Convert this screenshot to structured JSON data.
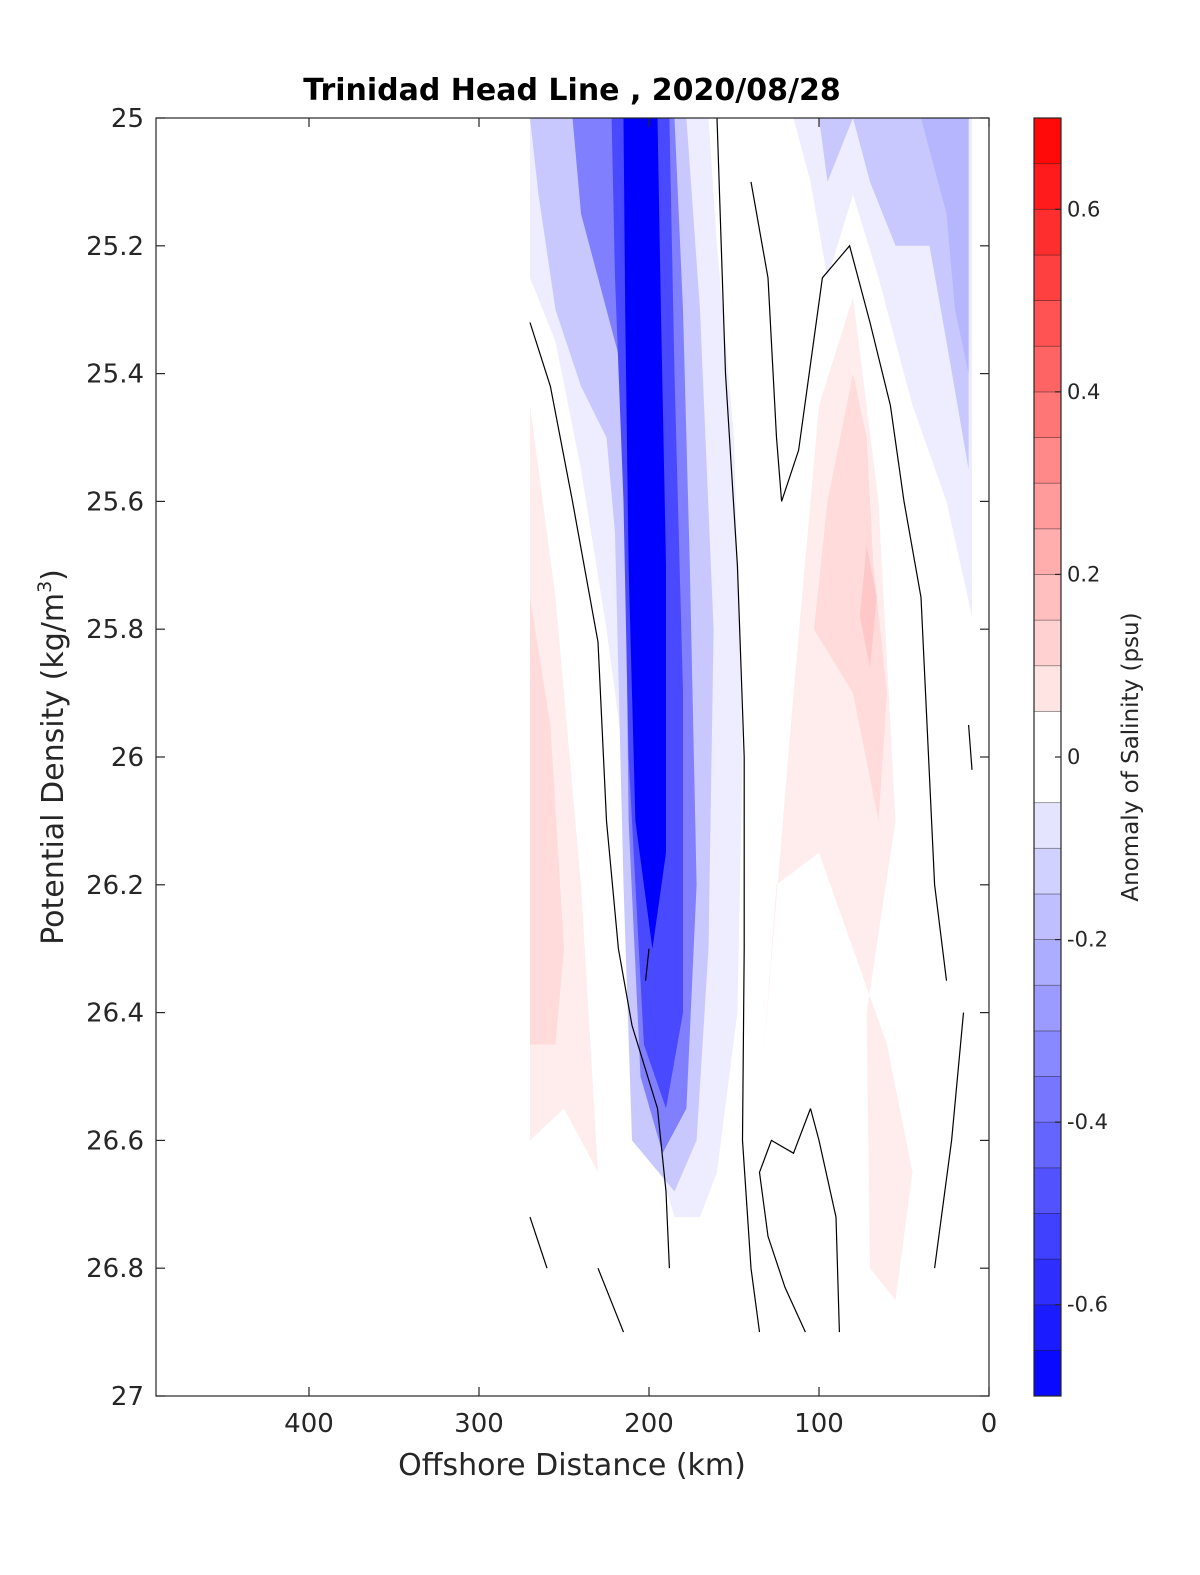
{
  "chart_data": {
    "type": "heatmap",
    "title": "Trinidad Head Line , 2020/08/28",
    "xlabel": "Offshore Distance (km)",
    "ylabel_main": "Potential Density (kg/m",
    "ylabel_sup": "3",
    "ylabel_end": ")",
    "colorbar_label": "Anomaly of Salinity (psu)",
    "xlim": [
      490,
      0
    ],
    "x_reversed": true,
    "ylim": [
      25,
      27
    ],
    "y_reversed": true,
    "xticks": [
      400,
      300,
      200,
      100,
      0
    ],
    "xtick_labels": [
      "400",
      "300",
      "200",
      "100",
      "0"
    ],
    "yticks": [
      25,
      25.2,
      25.4,
      25.6,
      25.8,
      26,
      26.2,
      26.4,
      26.6,
      26.8,
      27
    ],
    "ytick_labels": [
      "25",
      "25.2",
      "25.4",
      "25.6",
      "25.8",
      "26",
      "26.2",
      "26.4",
      "26.6",
      "26.8",
      "27"
    ],
    "colorbar": {
      "clim": [
        -0.7,
        0.7
      ],
      "levels": [
        -0.7,
        -0.65,
        -0.6,
        -0.55,
        -0.5,
        -0.45,
        -0.4,
        -0.35,
        -0.3,
        -0.25,
        -0.2,
        -0.15,
        -0.1,
        -0.05,
        0.05,
        0.1,
        0.15,
        0.2,
        0.25,
        0.3,
        0.35,
        0.4,
        0.45,
        0.5,
        0.55,
        0.6,
        0.65,
        0.7
      ],
      "ticks": [
        0.6,
        0.4,
        0.2,
        0,
        -0.2,
        -0.4,
        -0.6
      ],
      "tick_labels": [
        "0.6",
        "0.4",
        "0.2",
        "0",
        "-0.2",
        "-0.4",
        "-0.6"
      ],
      "low_color": "#0000ff",
      "high_color": "#ff0000"
    },
    "regions": [
      {
        "name": "offshore-positive-anomaly",
        "value": 0.05,
        "points": [
          [
            270,
            25.45
          ],
          [
            255,
            25.75
          ],
          [
            240,
            26.2
          ],
          [
            230,
            26.65
          ],
          [
            250,
            26.55
          ],
          [
            270,
            26.6
          ]
        ]
      },
      {
        "name": "offshore-positive-anomaly-core",
        "value": 0.1,
        "points": [
          [
            270,
            25.75
          ],
          [
            258,
            25.95
          ],
          [
            250,
            26.3
          ],
          [
            255,
            26.45
          ],
          [
            270,
            26.45
          ]
        ]
      },
      {
        "name": "nearshore-positive-anomaly",
        "value": 0.05,
        "points": [
          [
            80,
            25.28
          ],
          [
            100,
            25.45
          ],
          [
            115,
            25.9
          ],
          [
            133,
            26.48
          ],
          [
            125,
            26.2
          ],
          [
            100,
            26.15
          ],
          [
            80,
            26.3
          ],
          [
            60,
            26.45
          ],
          [
            45,
            26.65
          ],
          [
            55,
            26.85
          ],
          [
            70,
            26.8
          ],
          [
            72,
            26.4
          ],
          [
            55,
            26.1
          ],
          [
            65,
            25.6
          ]
        ]
      },
      {
        "name": "nearshore-positive-anomaly-core",
        "value": 0.1,
        "points": [
          [
            80,
            25.4
          ],
          [
            95,
            25.6
          ],
          [
            103,
            25.8
          ],
          [
            80,
            25.9
          ],
          [
            65,
            26.1
          ],
          [
            60,
            25.9
          ],
          [
            68,
            25.7
          ],
          [
            72,
            25.5
          ]
        ]
      },
      {
        "name": "nearshore-positive-anomaly-peak",
        "value": 0.15,
        "points": [
          [
            72,
            25.67
          ],
          [
            76,
            25.78
          ],
          [
            70,
            25.86
          ],
          [
            66,
            25.75
          ]
        ]
      },
      {
        "name": "nearshore-negative-anomaly",
        "value": -0.05,
        "points": [
          [
            115,
            25.0
          ],
          [
            105,
            25.1
          ],
          [
            95,
            25.25
          ],
          [
            80,
            25.12
          ],
          [
            65,
            25.25
          ],
          [
            45,
            25.45
          ],
          [
            25,
            25.6
          ],
          [
            10,
            25.78
          ],
          [
            10,
            25.0
          ]
        ]
      },
      {
        "name": "nearshore-negative-anomaly-core",
        "value": -0.15,
        "points": [
          [
            100,
            25.0
          ],
          [
            95,
            25.1
          ],
          [
            80,
            25.0
          ],
          [
            70,
            25.1
          ],
          [
            55,
            25.2
          ],
          [
            35,
            25.2
          ],
          [
            25,
            25.35
          ],
          [
            12,
            25.55
          ],
          [
            12,
            25.0
          ]
        ]
      },
      {
        "name": "coastal-negative-anomaly-strong",
        "value": -0.2,
        "points": [
          [
            40,
            25.0
          ],
          [
            25,
            25.15
          ],
          [
            20,
            25.3
          ],
          [
            12,
            25.4
          ],
          [
            12,
            25.0
          ]
        ]
      },
      {
        "name": "core-halo-negative",
        "value": -0.05,
        "points": [
          [
            270,
            25.0
          ],
          [
            270,
            25.25
          ],
          [
            255,
            25.35
          ],
          [
            240,
            25.55
          ],
          [
            225,
            25.8
          ],
          [
            210,
            26.1
          ],
          [
            210,
            26.5
          ],
          [
            185,
            26.72
          ],
          [
            170,
            26.72
          ],
          [
            160,
            26.65
          ],
          [
            148,
            26.4
          ],
          [
            145,
            26.0
          ],
          [
            150,
            25.5
          ],
          [
            160,
            25.2
          ],
          [
            165,
            25.0
          ]
        ]
      },
      {
        "name": "negative-anomaly-tongue",
        "value": -0.15,
        "points": [
          [
            270,
            25.0
          ],
          [
            265,
            25.12
          ],
          [
            255,
            25.3
          ],
          [
            240,
            25.42
          ],
          [
            225,
            25.5
          ],
          [
            220,
            25.65
          ],
          [
            215,
            26.2
          ],
          [
            210,
            26.6
          ],
          [
            185,
            26.68
          ],
          [
            172,
            26.6
          ],
          [
            165,
            26.3
          ],
          [
            162,
            25.8
          ],
          [
            170,
            25.3
          ],
          [
            178,
            25.0
          ]
        ]
      },
      {
        "name": "negative-anomaly-core-outer",
        "value": -0.35,
        "points": [
          [
            245,
            25.0
          ],
          [
            240,
            25.15
          ],
          [
            225,
            25.3
          ],
          [
            215,
            25.4
          ],
          [
            212,
            26.1
          ],
          [
            205,
            26.5
          ],
          [
            192,
            26.62
          ],
          [
            178,
            26.55
          ],
          [
            172,
            26.2
          ],
          [
            176,
            25.7
          ],
          [
            180,
            25.3
          ],
          [
            185,
            25.0
          ]
        ]
      },
      {
        "name": "negative-anomaly-core-mid",
        "value": -0.5,
        "points": [
          [
            222,
            25.0
          ],
          [
            220,
            25.25
          ],
          [
            215,
            25.6
          ],
          [
            212,
            26.0
          ],
          [
            203,
            26.45
          ],
          [
            190,
            26.55
          ],
          [
            180,
            26.4
          ],
          [
            180,
            25.9
          ],
          [
            185,
            25.4
          ],
          [
            188,
            25.0
          ]
        ]
      },
      {
        "name": "negative-anomaly-core-peak",
        "value": -0.7,
        "points": [
          [
            215,
            25.0
          ],
          [
            214,
            25.3
          ],
          [
            212,
            25.7
          ],
          [
            208,
            26.1
          ],
          [
            198,
            26.3
          ],
          [
            190,
            26.15
          ],
          [
            190,
            25.7
          ],
          [
            193,
            25.3
          ],
          [
            195,
            25.0
          ]
        ]
      }
    ],
    "zero_contours": [
      [
        [
          270,
          25.32
        ],
        [
          258,
          25.42
        ],
        [
          245,
          25.6
        ],
        [
          230,
          25.82
        ],
        [
          225,
          26.1
        ],
        [
          218,
          26.3
        ],
        [
          210,
          26.42
        ],
        [
          195,
          26.55
        ],
        [
          190,
          26.68
        ],
        [
          188,
          26.8
        ]
      ],
      [
        [
          160,
          25.0
        ],
        [
          155,
          25.4
        ],
        [
          148,
          25.7
        ],
        [
          144,
          26.0
        ],
        [
          144,
          26.3
        ],
        [
          145,
          26.6
        ],
        [
          142,
          26.72
        ],
        [
          140,
          26.8
        ],
        [
          135,
          26.9
        ]
      ],
      [
        [
          140,
          25.1
        ],
        [
          130,
          25.25
        ],
        [
          125,
          25.5
        ],
        [
          122,
          25.6
        ],
        [
          112,
          25.52
        ],
        [
          98,
          25.25
        ],
        [
          82,
          25.2
        ],
        [
          70,
          25.32
        ],
        [
          58,
          25.45
        ],
        [
          50,
          25.6
        ],
        [
          40,
          25.75
        ],
        [
          32,
          26.2
        ],
        [
          25,
          26.35
        ]
      ],
      [
        [
          270,
          26.72
        ],
        [
          260,
          26.8
        ]
      ],
      [
        [
          230,
          26.8
        ],
        [
          218,
          26.88
        ],
        [
          215,
          26.9
        ]
      ],
      [
        [
          200,
          26.3
        ],
        [
          202,
          26.35
        ]
      ],
      [
        [
          105,
          26.55
        ],
        [
          115,
          26.62
        ],
        [
          128,
          26.6
        ],
        [
          135,
          26.65
        ],
        [
          130,
          26.75
        ],
        [
          120,
          26.83
        ],
        [
          108,
          26.9
        ]
      ],
      [
        [
          88,
          26.9
        ],
        [
          90,
          26.72
        ],
        [
          100,
          26.6
        ],
        [
          105,
          26.55
        ]
      ],
      [
        [
          15,
          26.4
        ],
        [
          22,
          26.6
        ],
        [
          32,
          26.8
        ]
      ],
      [
        [
          12,
          25.95
        ],
        [
          10,
          26.02
        ]
      ]
    ]
  }
}
